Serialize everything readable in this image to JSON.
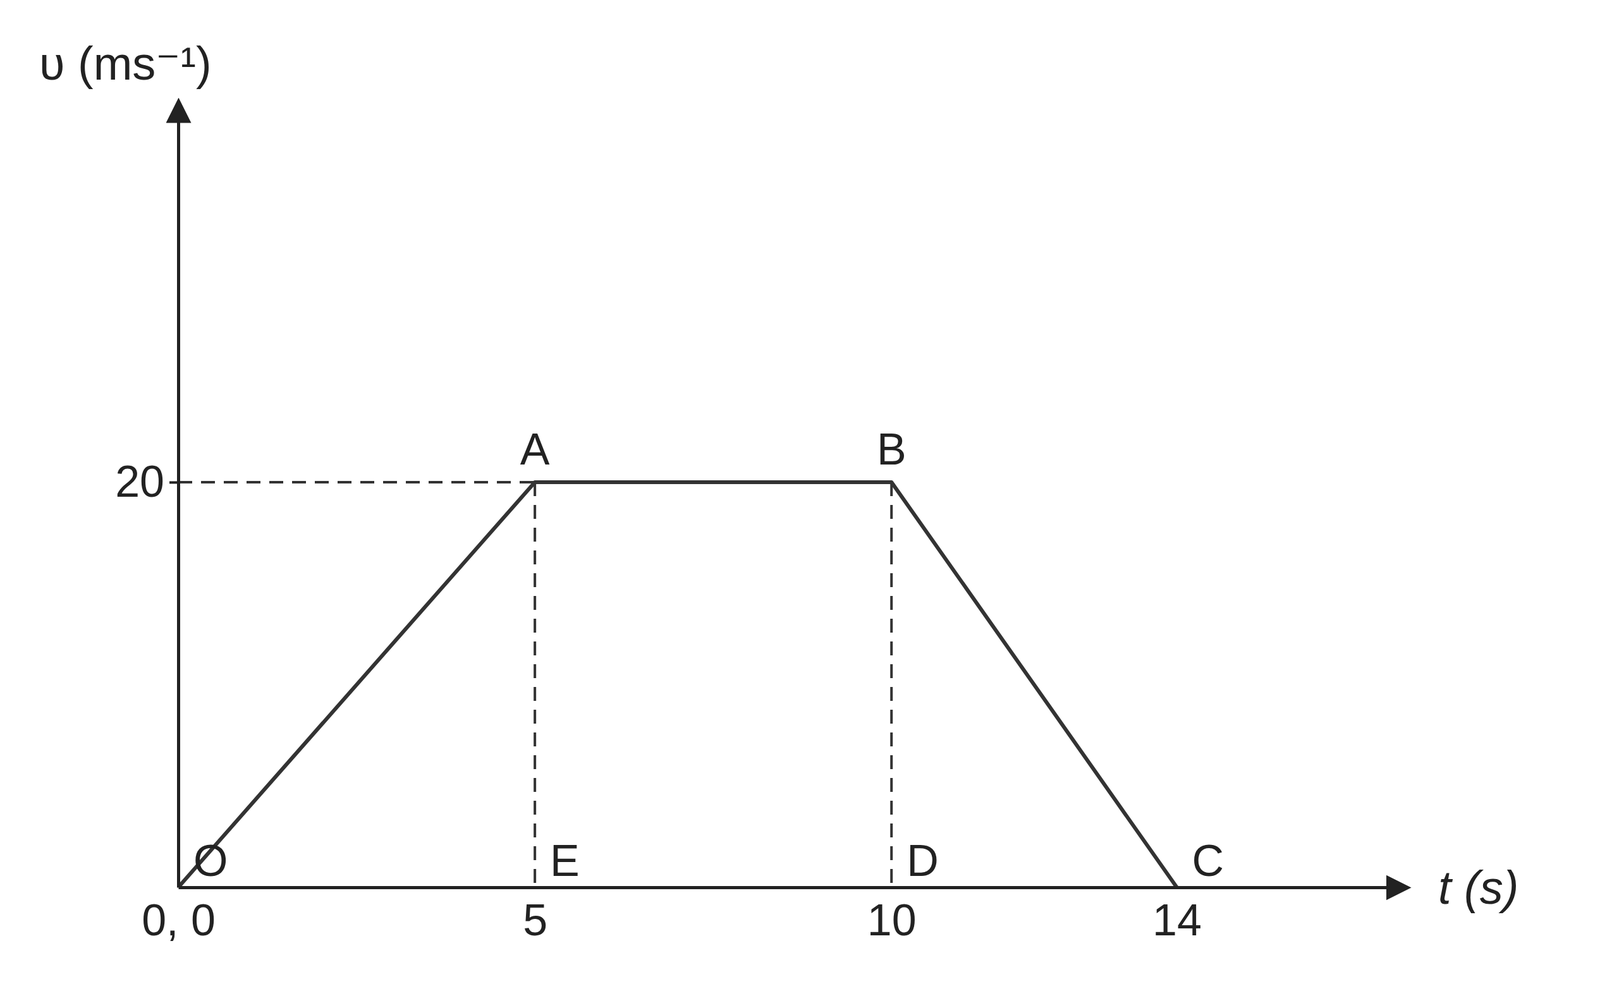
{
  "chart_data": {
    "type": "line",
    "x_label": "t (s)",
    "y_label": "υ (ms⁻¹)",
    "x": [
      0,
      5,
      10,
      14
    ],
    "values": [
      0,
      20,
      20,
      0
    ],
    "color": "#333333",
    "xlim": [
      0,
      17
    ],
    "ylim": [
      0,
      38
    ],
    "xticks": [
      {
        "value": 0,
        "label": "0, 0"
      },
      5,
      10,
      14
    ],
    "yticks": [
      20
    ],
    "grid": false,
    "annotations": [
      {
        "text": "O",
        "x": 0,
        "y": 0
      },
      {
        "text": "A",
        "x": 5,
        "y": 20
      },
      {
        "text": "B",
        "x": 10,
        "y": 20
      },
      {
        "text": "C",
        "x": 14,
        "y": 0
      },
      {
        "text": "E",
        "x": 5,
        "y": 0
      },
      {
        "text": "D",
        "x": 10,
        "y": 0
      }
    ]
  }
}
